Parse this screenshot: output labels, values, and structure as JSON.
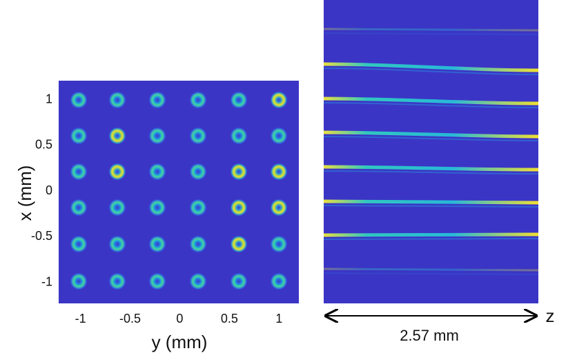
{
  "chart_data": {
    "type": "image",
    "xlabel": "y (mm)",
    "ylabel": "x (mm)",
    "xlim": [
      -1.22,
      1.2
    ],
    "ylim": [
      -1.23,
      1.21
    ],
    "xticks": [
      -1,
      -0.5,
      0,
      0.5,
      1
    ],
    "yticks": [
      1,
      0.5,
      0,
      -0.5,
      -1
    ],
    "scale_bar": "2.57 mm",
    "axis_name": "z"
  }
}
